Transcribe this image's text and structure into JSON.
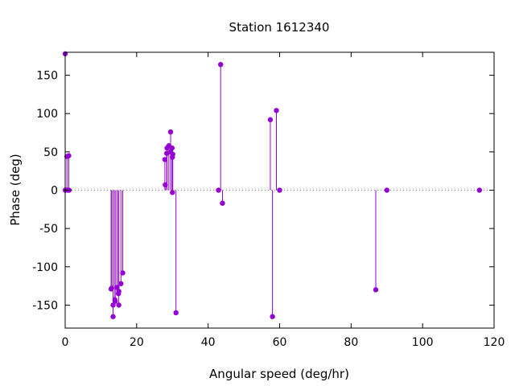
{
  "chart_data": {
    "type": "scatter",
    "style": "impulses-with-points",
    "title": "Station 1612340",
    "xlabel": "Angular speed (deg/hr)",
    "ylabel": "Phase (deg)",
    "xlim": [
      0,
      120
    ],
    "ylim": [
      -180,
      180
    ],
    "xticks": [
      0,
      20,
      40,
      60,
      80,
      100,
      120
    ],
    "yticks": [
      -150,
      -100,
      -50,
      0,
      50,
      100,
      150
    ],
    "zero_line": "dotted",
    "grid": false,
    "legend": "none",
    "color": "#9400d3",
    "points": [
      {
        "x": 0.0,
        "y": 178
      },
      {
        "x": 0.04,
        "y": 0
      },
      {
        "x": 0.08,
        "y": 0
      },
      {
        "x": 0.5,
        "y": 44
      },
      {
        "x": 0.8,
        "y": 0
      },
      {
        "x": 1.0,
        "y": 45
      },
      {
        "x": 1.1,
        "y": 0
      },
      {
        "x": 12.85,
        "y": -129
      },
      {
        "x": 13.0,
        "y": -128
      },
      {
        "x": 13.4,
        "y": -150
      },
      {
        "x": 13.4,
        "y": -165
      },
      {
        "x": 13.9,
        "y": -143
      },
      {
        "x": 14.0,
        "y": -145
      },
      {
        "x": 14.5,
        "y": -127
      },
      {
        "x": 14.9,
        "y": -135
      },
      {
        "x": 15.0,
        "y": -150
      },
      {
        "x": 15.0,
        "y": -132
      },
      {
        "x": 15.6,
        "y": -122
      },
      {
        "x": 16.1,
        "y": -108
      },
      {
        "x": 27.9,
        "y": 40
      },
      {
        "x": 28.0,
        "y": 7
      },
      {
        "x": 28.4,
        "y": 48
      },
      {
        "x": 28.5,
        "y": 55
      },
      {
        "x": 29.0,
        "y": 58
      },
      {
        "x": 29.5,
        "y": 76
      },
      {
        "x": 29.5,
        "y": 50
      },
      {
        "x": 29.9,
        "y": 55
      },
      {
        "x": 30.0,
        "y": 43
      },
      {
        "x": 30.0,
        "y": -3
      },
      {
        "x": 30.1,
        "y": 47
      },
      {
        "x": 31.0,
        "y": -160
      },
      {
        "x": 42.9,
        "y": 0
      },
      {
        "x": 43.5,
        "y": 164
      },
      {
        "x": 44.0,
        "y": -17
      },
      {
        "x": 57.4,
        "y": 92
      },
      {
        "x": 58.0,
        "y": -165
      },
      {
        "x": 59.1,
        "y": 104
      },
      {
        "x": 60.0,
        "y": 0
      },
      {
        "x": 86.9,
        "y": -130
      },
      {
        "x": 90.0,
        "y": 0
      },
      {
        "x": 115.9,
        "y": 0
      }
    ]
  }
}
